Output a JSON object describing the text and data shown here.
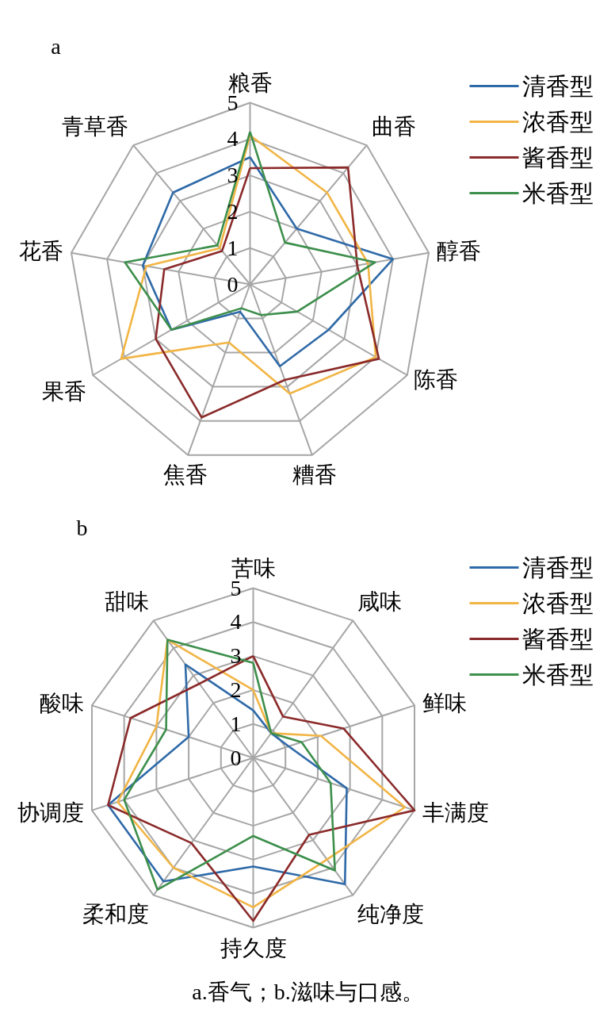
{
  "chart_data": [
    {
      "type": "radar",
      "title": "a",
      "categories": [
        "粮香",
        "曲香",
        "醇香",
        "陈香",
        "糟香",
        "焦香",
        "果香",
        "花香",
        "青草香"
      ],
      "ylim": [
        0,
        5
      ],
      "yticks": [
        0,
        1,
        2,
        3,
        4,
        5
      ],
      "grid": true,
      "legend": "top right",
      "series": [
        {
          "name": "清香型",
          "color": "#2f6aa8",
          "values": [
            3.5,
            2.0,
            4.0,
            2.5,
            2.4,
            0.8,
            2.5,
            3.0,
            3.3
          ]
        },
        {
          "name": "浓香型",
          "color": "#f2b545",
          "values": [
            4.1,
            3.3,
            3.3,
            4.0,
            3.2,
            1.7,
            4.1,
            2.9,
            1.3
          ]
        },
        {
          "name": "酱香型",
          "color": "#8b2a2a",
          "values": [
            3.2,
            4.2,
            3.0,
            4.1,
            2.8,
            3.9,
            3.0,
            2.4,
            1.2
          ]
        },
        {
          "name": "米香型",
          "color": "#3d8f4c",
          "values": [
            4.2,
            1.5,
            3.5,
            1.5,
            0.9,
            0.7,
            2.5,
            3.5,
            1.4
          ]
        }
      ]
    },
    {
      "type": "radar",
      "title": "b",
      "categories": [
        "苦味",
        "咸味",
        "鲜味",
        "丰满度",
        "纯净度",
        "持久度",
        "柔和度",
        "协调度",
        "酸味",
        "甜味"
      ],
      "ylim": [
        0,
        5
      ],
      "yticks": [
        0,
        1,
        2,
        3,
        4,
        5
      ],
      "grid": true,
      "legend": "top right",
      "annotations": [
        "a.香气；b.滋味与口感。"
      ],
      "series": [
        {
          "name": "清香型",
          "color": "#2f6aa8",
          "values": [
            1.4,
            0.9,
            1.1,
            2.9,
            4.6,
            3.2,
            4.5,
            4.5,
            2.0,
            3.4
          ]
        },
        {
          "name": "浓香型",
          "color": "#f2b545",
          "values": [
            2.0,
            0.9,
            2.1,
            4.7,
            3.7,
            4.4,
            4.0,
            4.2,
            3.0,
            4.3
          ]
        },
        {
          "name": "酱香型",
          "color": "#8b2a2a",
          "values": [
            3.0,
            1.5,
            2.8,
            5.0,
            2.8,
            4.8,
            3.1,
            4.5,
            3.8,
            2.7
          ]
        },
        {
          "name": "米香型",
          "color": "#3d8f4c",
          "values": [
            2.8,
            0.9,
            1.5,
            2.4,
            4.1,
            2.3,
            4.8,
            4.0,
            2.7,
            4.3
          ]
        }
      ]
    }
  ]
}
